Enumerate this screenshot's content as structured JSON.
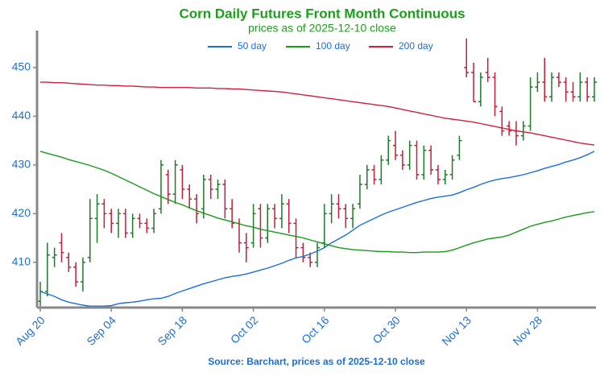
{
  "chart_data": {
    "type": "ohlc",
    "title": "Corn Daily Futures Front Month Continuous",
    "subtitle": "prices as of 2025-12-10 close",
    "source": "Source: Barchart, prices as of 2025-12-10 close",
    "categories": [
      "Aug 20",
      null,
      null,
      null,
      null,
      null,
      null,
      null,
      null,
      null,
      "Sep 04",
      null,
      null,
      null,
      null,
      null,
      null,
      null,
      null,
      null,
      "Sep 18",
      null,
      null,
      null,
      null,
      null,
      null,
      null,
      null,
      null,
      "Oct 02",
      null,
      null,
      null,
      null,
      null,
      null,
      null,
      null,
      null,
      "Oct 16",
      null,
      null,
      null,
      null,
      null,
      null,
      null,
      null,
      null,
      "Oct 30",
      null,
      null,
      null,
      null,
      null,
      null,
      null,
      null,
      null,
      "Nov 13",
      null,
      null,
      null,
      null,
      null,
      null,
      null,
      null,
      null,
      "Nov 28",
      null,
      null,
      null,
      null,
      null,
      null,
      null,
      null
    ],
    "open": [
      402,
      404,
      411,
      414,
      411,
      409,
      406,
      411,
      419,
      422,
      420,
      418,
      420,
      416,
      419,
      418,
      417,
      421,
      428,
      424,
      429,
      425,
      423,
      421,
      427,
      425,
      426,
      421,
      418,
      414,
      414,
      421,
      415,
      421,
      419,
      422,
      418,
      413,
      411,
      410,
      414,
      420,
      422,
      421,
      419,
      422,
      426,
      429,
      427,
      431,
      434,
      432,
      430,
      434,
      428,
      433,
      429,
      427,
      428,
      432,
      450,
      449,
      443,
      449,
      448,
      441,
      438,
      437,
      436,
      438,
      446,
      447,
      444,
      448,
      447,
      445,
      444,
      447,
      444
    ],
    "high": [
      406,
      414,
      413,
      416,
      412,
      410,
      411,
      423,
      424,
      423,
      421,
      421,
      421,
      420,
      420,
      419,
      421,
      431,
      429,
      431,
      430,
      426,
      424,
      428,
      428,
      427,
      427,
      423,
      419,
      416,
      422,
      422,
      422,
      422,
      424,
      423,
      419,
      414,
      412,
      414,
      422,
      424,
      424,
      422,
      422,
      428,
      430,
      430,
      432,
      436,
      437,
      433,
      435,
      435,
      434,
      434,
      430,
      429,
      432,
      436,
      456,
      451,
      449,
      452,
      449,
      442,
      439,
      439,
      439,
      448,
      449,
      452,
      449,
      449,
      448,
      447,
      449,
      448,
      448
    ],
    "low": [
      401,
      403,
      409,
      410,
      408,
      405,
      404,
      410,
      414,
      417,
      416,
      415,
      415,
      415,
      417,
      416,
      416,
      420,
      422,
      422,
      423,
      421,
      418,
      419,
      423,
      423,
      419,
      417,
      412,
      410,
      413,
      413,
      414,
      417,
      417,
      416,
      411,
      410,
      409,
      409,
      413,
      418,
      419,
      417,
      417,
      421,
      425,
      426,
      426,
      430,
      431,
      429,
      429,
      427,
      427,
      428,
      426,
      426,
      427,
      431,
      448,
      443,
      442,
      447,
      440,
      436,
      436,
      434,
      435,
      437,
      445,
      443,
      443,
      446,
      443,
      443,
      443,
      443,
      443
    ],
    "close": [
      404,
      411.5,
      411.5,
      412,
      409,
      406,
      410,
      419,
      422,
      420,
      418,
      420,
      416,
      419,
      418,
      417,
      420,
      430,
      424,
      430,
      425,
      423,
      420,
      427,
      425,
      426,
      421,
      418,
      414,
      413,
      420,
      415,
      421,
      419,
      422,
      418,
      413,
      411,
      410,
      413,
      420,
      422,
      421,
      419,
      421,
      426,
      429,
      427,
      431,
      435,
      432,
      430,
      434,
      428,
      433,
      429,
      427,
      428,
      431,
      435,
      449,
      443,
      448,
      448,
      442,
      437,
      437,
      436,
      438,
      446,
      447,
      444,
      448,
      447,
      445,
      444,
      447,
      444,
      447
    ],
    "up_color": "#1f7a2a",
    "down_color": "#c0203a",
    "series": [
      {
        "name": "50 day",
        "color": "#1a6fd6",
        "values": [
          404,
          403.5,
          403,
          402.3,
          401.8,
          401.5,
          401.2,
          401,
          401,
          401,
          401.1,
          401.5,
          401.7,
          401.8,
          402,
          402.3,
          402.5,
          402.6,
          403,
          403.6,
          404.1,
          404.6,
          405.1,
          405.6,
          406,
          406.4,
          406.8,
          407.1,
          407.3,
          407.6,
          408,
          408.4,
          408.8,
          409.3,
          409.8,
          410.4,
          410.9,
          411.2,
          411.7,
          412.3,
          413,
          414,
          414.8,
          415.6,
          416.6,
          417.6,
          418.3,
          419,
          419.7,
          420.3,
          420.8,
          421.3,
          421.8,
          422.3,
          422.7,
          423.1,
          423.4,
          423.6,
          423.8,
          424.3,
          424.9,
          425.4,
          426,
          426.5,
          426.9,
          427.2,
          427.4,
          427.7,
          428,
          428.4,
          428.8,
          429.3,
          429.7,
          430.1,
          430.6,
          431,
          431.5,
          432.1,
          432.8
        ]
      },
      {
        "name": "100 day",
        "color": "#1a9a1a",
        "values": [
          432.8,
          432.4,
          432,
          431.6,
          431.1,
          430.7,
          430.3,
          429.9,
          429.4,
          428.9,
          428.3,
          427.6,
          426.9,
          426.2,
          425.5,
          424.8,
          424.1,
          423.5,
          422.9,
          422.3,
          421.8,
          421.2,
          420.6,
          420.1,
          419.6,
          419.1,
          418.7,
          418.3,
          417.9,
          417.5,
          417.2,
          416.8,
          416.5,
          416.2,
          415.9,
          415.6,
          415.3,
          415,
          414.6,
          414.2,
          413.8,
          413.4,
          413,
          412.8,
          412.6,
          412.5,
          412.4,
          412.3,
          412.2,
          412.2,
          412.1,
          412.1,
          412,
          412,
          412.1,
          412.1,
          412.1,
          412.2,
          412.5,
          413,
          413.5,
          414,
          414.4,
          414.8,
          415,
          415.2,
          415.6,
          416.2,
          416.8,
          417.4,
          417.8,
          418.2,
          418.5,
          418.9,
          419.3,
          419.6,
          419.9,
          420.2,
          420.4
        ]
      },
      {
        "name": "200 day",
        "color": "#d0203e",
        "values": [
          447,
          447,
          446.9,
          446.9,
          446.8,
          446.7,
          446.6,
          446.5,
          446.4,
          446.4,
          446.3,
          446.3,
          446.2,
          446.2,
          446.1,
          446,
          446,
          445.9,
          445.9,
          445.9,
          445.9,
          445.9,
          445.8,
          445.8,
          445.8,
          445.7,
          445.7,
          445.6,
          445.6,
          445.5,
          445.4,
          445.3,
          445.2,
          445.1,
          445,
          444.8,
          444.6,
          444.4,
          444.2,
          444,
          443.8,
          443.6,
          443.4,
          443.2,
          443,
          442.8,
          442.6,
          442.4,
          442.2,
          442,
          441.7,
          441.4,
          441.1,
          440.8,
          440.5,
          440.2,
          439.9,
          439.6,
          439.4,
          439.2,
          439,
          438.8,
          438.5,
          438.2,
          437.9,
          437.6,
          437.3,
          437,
          436.8,
          436.6,
          436.3,
          436,
          435.7,
          435.4,
          435.1,
          434.8,
          434.5,
          434.3,
          434.1
        ]
      }
    ],
    "ylim": [
      400.7,
      457.6
    ],
    "yticks": [
      410,
      420,
      430,
      440,
      450
    ],
    "grid": false,
    "legend": "top"
  }
}
